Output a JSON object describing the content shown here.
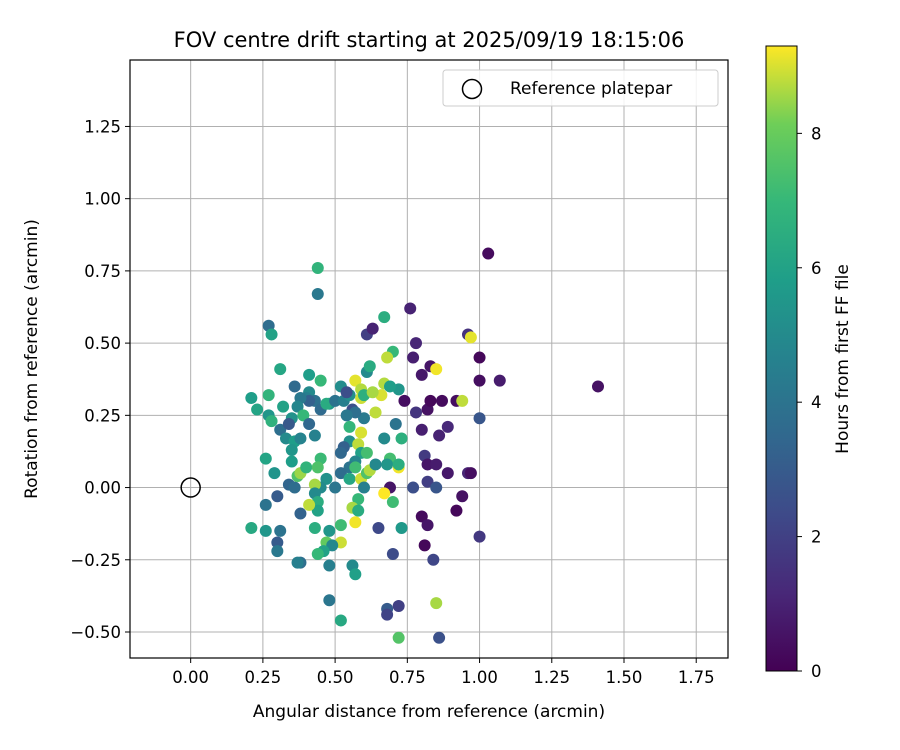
{
  "chart_data": {
    "type": "scatter",
    "title": "FOV centre drift starting at 2025/09/19 18:15:06",
    "xlabel": "Angular distance from reference (arcmin)",
    "ylabel": "Rotation from reference (arcmin)",
    "xlim": [
      -0.21,
      1.86
    ],
    "ylim": [
      -0.59,
      1.48
    ],
    "x_ticks": [
      0.0,
      0.25,
      0.5,
      0.75,
      1.0,
      1.25,
      1.5,
      1.75
    ],
    "x_tick_labels": [
      "0.00",
      "0.25",
      "0.50",
      "0.75",
      "1.00",
      "1.25",
      "1.50",
      "1.75"
    ],
    "y_ticks": [
      -0.5,
      -0.25,
      0.0,
      0.25,
      0.5,
      0.75,
      1.0,
      1.25
    ],
    "y_tick_labels": [
      "−0.50",
      "−0.25",
      "0.00",
      "0.25",
      "0.50",
      "0.75",
      "1.00",
      "1.25"
    ],
    "grid": true,
    "legend": {
      "position": "top-right",
      "entries": [
        "Reference platepar"
      ]
    },
    "reference_point": {
      "x": 0.0,
      "y": 0.0,
      "label": "Reference platepar"
    },
    "colorbar": {
      "label": "Hours from first FF file",
      "range": [
        0,
        9.3
      ],
      "ticks": [
        0,
        2,
        4,
        6,
        8
      ],
      "tick_labels": [
        "0",
        "2",
        "4",
        "6",
        "8"
      ],
      "colormap": "viridis"
    },
    "series": [
      {
        "name": "FOV centre",
        "points": [
          [
            1.03,
            0.81,
            0.3
          ],
          [
            1.41,
            0.35,
            0.5
          ],
          [
            1.07,
            0.37,
            0.8
          ],
          [
            1.0,
            0.37,
            0.4
          ],
          [
            1.0,
            0.45,
            0.2
          ],
          [
            0.96,
            0.53,
            1.5
          ],
          [
            0.76,
            0.62,
            1.0
          ],
          [
            0.78,
            0.5,
            1.1
          ],
          [
            0.77,
            0.45,
            0.9
          ],
          [
            0.8,
            0.39,
            0.7
          ],
          [
            0.83,
            0.42,
            0.6
          ],
          [
            0.74,
            0.3,
            0.4
          ],
          [
            0.78,
            0.26,
            1.6
          ],
          [
            0.82,
            0.27,
            0.5
          ],
          [
            0.87,
            0.3,
            0.3
          ],
          [
            0.83,
            0.3,
            0.2
          ],
          [
            0.92,
            0.3,
            0.4
          ],
          [
            0.89,
            0.21,
            1.2
          ],
          [
            0.86,
            0.18,
            1.0
          ],
          [
            0.8,
            0.2,
            0.9
          ],
          [
            0.81,
            0.11,
            1.8
          ],
          [
            0.82,
            0.08,
            0.6
          ],
          [
            0.85,
            0.08,
            0.8
          ],
          [
            0.89,
            0.05,
            0.7
          ],
          [
            0.96,
            0.05,
            1.1
          ],
          [
            0.97,
            0.05,
            0.4
          ],
          [
            0.94,
            -0.03,
            0.5
          ],
          [
            0.92,
            -0.08,
            0.2
          ],
          [
            0.82,
            0.02,
            1.9
          ],
          [
            0.85,
            0.0,
            2.8
          ],
          [
            0.77,
            0.0,
            2.5
          ],
          [
            0.8,
            -0.1,
            0.3
          ],
          [
            0.82,
            -0.13,
            0.6
          ],
          [
            0.81,
            -0.2,
            0.2
          ],
          [
            0.84,
            -0.25,
            2.2
          ],
          [
            0.7,
            -0.23,
            2.4
          ],
          [
            0.65,
            -0.14,
            2.3
          ],
          [
            0.69,
            0.0,
            0.6
          ],
          [
            1.0,
            -0.17,
            1.7
          ],
          [
            1.0,
            0.24,
            2.8
          ],
          [
            0.86,
            -0.52,
            2.6
          ],
          [
            0.72,
            -0.41,
            2.0
          ],
          [
            0.68,
            -0.42,
            3.0
          ],
          [
            0.68,
            -0.44,
            2.1
          ],
          [
            0.61,
            0.53,
            2.0
          ],
          [
            0.63,
            0.55,
            1.0
          ],
          [
            0.67,
            0.59,
            6.5
          ],
          [
            0.7,
            0.47,
            7.0
          ],
          [
            0.68,
            0.45,
            8.8
          ],
          [
            0.72,
            0.34,
            5.5
          ],
          [
            0.67,
            0.36,
            8.7
          ],
          [
            0.66,
            0.32,
            9.0
          ],
          [
            0.69,
            0.35,
            5.8
          ],
          [
            0.71,
            0.22,
            4.0
          ],
          [
            0.73,
            0.17,
            6.6
          ],
          [
            0.67,
            0.17,
            5.0
          ],
          [
            0.69,
            0.1,
            7.3
          ],
          [
            0.68,
            0.08,
            5.5
          ],
          [
            0.72,
            0.07,
            9.2
          ],
          [
            0.72,
            0.08,
            6.5
          ],
          [
            0.67,
            -0.02,
            9.3
          ],
          [
            0.7,
            -0.05,
            7.2
          ],
          [
            0.73,
            -0.14,
            5.6
          ],
          [
            0.72,
            -0.52,
            7.6
          ],
          [
            0.85,
            0.41,
            9.2
          ],
          [
            0.97,
            0.52,
            9.1
          ],
          [
            0.94,
            0.3,
            8.8
          ],
          [
            0.85,
            -0.4,
            8.6
          ],
          [
            0.44,
            0.76,
            6.8
          ],
          [
            0.44,
            0.67,
            4.2
          ],
          [
            0.27,
            0.56,
            3.7
          ],
          [
            0.28,
            0.53,
            6.0
          ],
          [
            0.31,
            0.41,
            6.2
          ],
          [
            0.41,
            0.39,
            5.8
          ],
          [
            0.45,
            0.37,
            7.0
          ],
          [
            0.36,
            0.35,
            3.6
          ],
          [
            0.41,
            0.33,
            5.0
          ],
          [
            0.4,
            0.31,
            4.5
          ],
          [
            0.43,
            0.3,
            3.9
          ],
          [
            0.41,
            0.3,
            3.2
          ],
          [
            0.38,
            0.31,
            4.2
          ],
          [
            0.37,
            0.28,
            4.8
          ],
          [
            0.32,
            0.28,
            6.0
          ],
          [
            0.27,
            0.32,
            6.8
          ],
          [
            0.21,
            0.31,
            5.8
          ],
          [
            0.23,
            0.27,
            6.1
          ],
          [
            0.27,
            0.25,
            5.5
          ],
          [
            0.28,
            0.23,
            6.7
          ],
          [
            0.31,
            0.2,
            3.8
          ],
          [
            0.33,
            0.17,
            5.0
          ],
          [
            0.36,
            0.16,
            5.8
          ],
          [
            0.35,
            0.13,
            5.5
          ],
          [
            0.38,
            0.17,
            4.7
          ],
          [
            0.39,
            0.25,
            7.0
          ],
          [
            0.41,
            0.22,
            3.5
          ],
          [
            0.43,
            0.18,
            4.6
          ],
          [
            0.45,
            0.27,
            3.6
          ],
          [
            0.48,
            0.29,
            5.6
          ],
          [
            0.47,
            0.29,
            6.4
          ],
          [
            0.5,
            0.3,
            4.0
          ],
          [
            0.53,
            0.3,
            4.5
          ],
          [
            0.55,
            0.32,
            5.2
          ],
          [
            0.52,
            0.35,
            5.1
          ],
          [
            0.54,
            0.33,
            2.5
          ],
          [
            0.57,
            0.37,
            9.1
          ],
          [
            0.59,
            0.31,
            8.9
          ],
          [
            0.59,
            0.34,
            8.7
          ],
          [
            0.6,
            0.32,
            6.6
          ],
          [
            0.61,
            0.4,
            5.0
          ],
          [
            0.62,
            0.42,
            6.4
          ],
          [
            0.63,
            0.33,
            8.6
          ],
          [
            0.64,
            0.26,
            8.8
          ],
          [
            0.6,
            0.24,
            4.3
          ],
          [
            0.56,
            0.27,
            2.5
          ],
          [
            0.57,
            0.26,
            3.8
          ],
          [
            0.54,
            0.25,
            4.2
          ],
          [
            0.55,
            0.21,
            6.9
          ],
          [
            0.55,
            0.16,
            5.2
          ],
          [
            0.59,
            0.19,
            9.0
          ],
          [
            0.58,
            0.15,
            8.8
          ],
          [
            0.59,
            0.12,
            5.9
          ],
          [
            0.61,
            0.12,
            7.3
          ],
          [
            0.57,
            0.09,
            4.8
          ],
          [
            0.55,
            0.07,
            4.0
          ],
          [
            0.53,
            0.14,
            3.2
          ],
          [
            0.52,
            0.12,
            3.5
          ],
          [
            0.52,
            0.05,
            3.7
          ],
          [
            0.55,
            0.03,
            6.2
          ],
          [
            0.57,
            0.07,
            7.2
          ],
          [
            0.59,
            0.03,
            8.9
          ],
          [
            0.6,
            0.0,
            4.5
          ],
          [
            0.61,
            0.05,
            7.5
          ],
          [
            0.62,
            0.06,
            8.7
          ],
          [
            0.64,
            0.08,
            4.9
          ],
          [
            0.58,
            -0.04,
            7.0
          ],
          [
            0.56,
            -0.07,
            8.6
          ],
          [
            0.58,
            -0.08,
            6.4
          ],
          [
            0.57,
            -0.12,
            9.2
          ],
          [
            0.52,
            -0.13,
            7.2
          ],
          [
            0.52,
            -0.19,
            8.9
          ],
          [
            0.5,
            0.0,
            4.1
          ],
          [
            0.47,
            0.03,
            5.3
          ],
          [
            0.45,
            0.0,
            5.0
          ],
          [
            0.43,
            0.01,
            8.6
          ],
          [
            0.43,
            -0.02,
            5.0
          ],
          [
            0.44,
            -0.05,
            6.5
          ],
          [
            0.44,
            -0.08,
            6.0
          ],
          [
            0.41,
            -0.06,
            8.8
          ],
          [
            0.43,
            -0.14,
            6.5
          ],
          [
            0.48,
            -0.15,
            5.5
          ],
          [
            0.47,
            -0.19,
            7.9
          ],
          [
            0.49,
            -0.2,
            4.9
          ],
          [
            0.46,
            -0.22,
            6.0
          ],
          [
            0.44,
            -0.23,
            7.0
          ],
          [
            0.48,
            -0.27,
            4.5
          ],
          [
            0.56,
            -0.27,
            5.0
          ],
          [
            0.57,
            -0.3,
            5.9
          ],
          [
            0.52,
            -0.46,
            6.3
          ],
          [
            0.48,
            -0.39,
            4.1
          ],
          [
            0.38,
            -0.26,
            3.8
          ],
          [
            0.37,
            -0.26,
            4.5
          ],
          [
            0.3,
            -0.19,
            3.0
          ],
          [
            0.3,
            -0.22,
            4.2
          ],
          [
            0.31,
            -0.15,
            4.0
          ],
          [
            0.26,
            -0.15,
            5.5
          ],
          [
            0.21,
            -0.14,
            6.3
          ],
          [
            0.26,
            -0.06,
            4.0
          ],
          [
            0.3,
            -0.03,
            3.0
          ],
          [
            0.34,
            0.01,
            3.4
          ],
          [
            0.36,
            0.0,
            3.7
          ],
          [
            0.38,
            -0.09,
            3.3
          ],
          [
            0.29,
            0.05,
            5.4
          ],
          [
            0.26,
            0.1,
            6.1
          ],
          [
            0.35,
            0.09,
            5.8
          ],
          [
            0.37,
            0.04,
            7.5
          ],
          [
            0.38,
            0.05,
            8.5
          ],
          [
            0.4,
            0.07,
            6.8
          ],
          [
            0.45,
            0.1,
            7.1
          ],
          [
            0.44,
            0.07,
            7.5
          ],
          [
            0.35,
            0.24,
            5.3
          ],
          [
            0.34,
            0.22,
            2.9
          ]
        ]
      }
    ]
  }
}
